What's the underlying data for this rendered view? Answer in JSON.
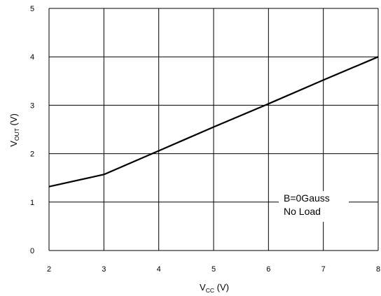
{
  "chart_data": {
    "type": "line",
    "xlabel": {
      "main": "V",
      "sub": "CC",
      "unit": " (V)"
    },
    "ylabel": {
      "main": "V",
      "sub": "OUT",
      "unit": " (V)"
    },
    "xlim": [
      2,
      8
    ],
    "ylim": [
      0,
      5
    ],
    "xticks": [
      2,
      3,
      4,
      5,
      6,
      7,
      8
    ],
    "yticks": [
      0,
      1,
      2,
      3,
      4,
      5
    ],
    "grid": true,
    "series": [
      {
        "x": [
          2,
          3,
          4,
          5,
          6,
          7,
          8
        ],
        "y": [
          1.32,
          1.57,
          2.06,
          2.55,
          3.03,
          3.52,
          4.0
        ]
      }
    ],
    "annotations": [
      "B=0Gauss",
      "No Load"
    ]
  }
}
